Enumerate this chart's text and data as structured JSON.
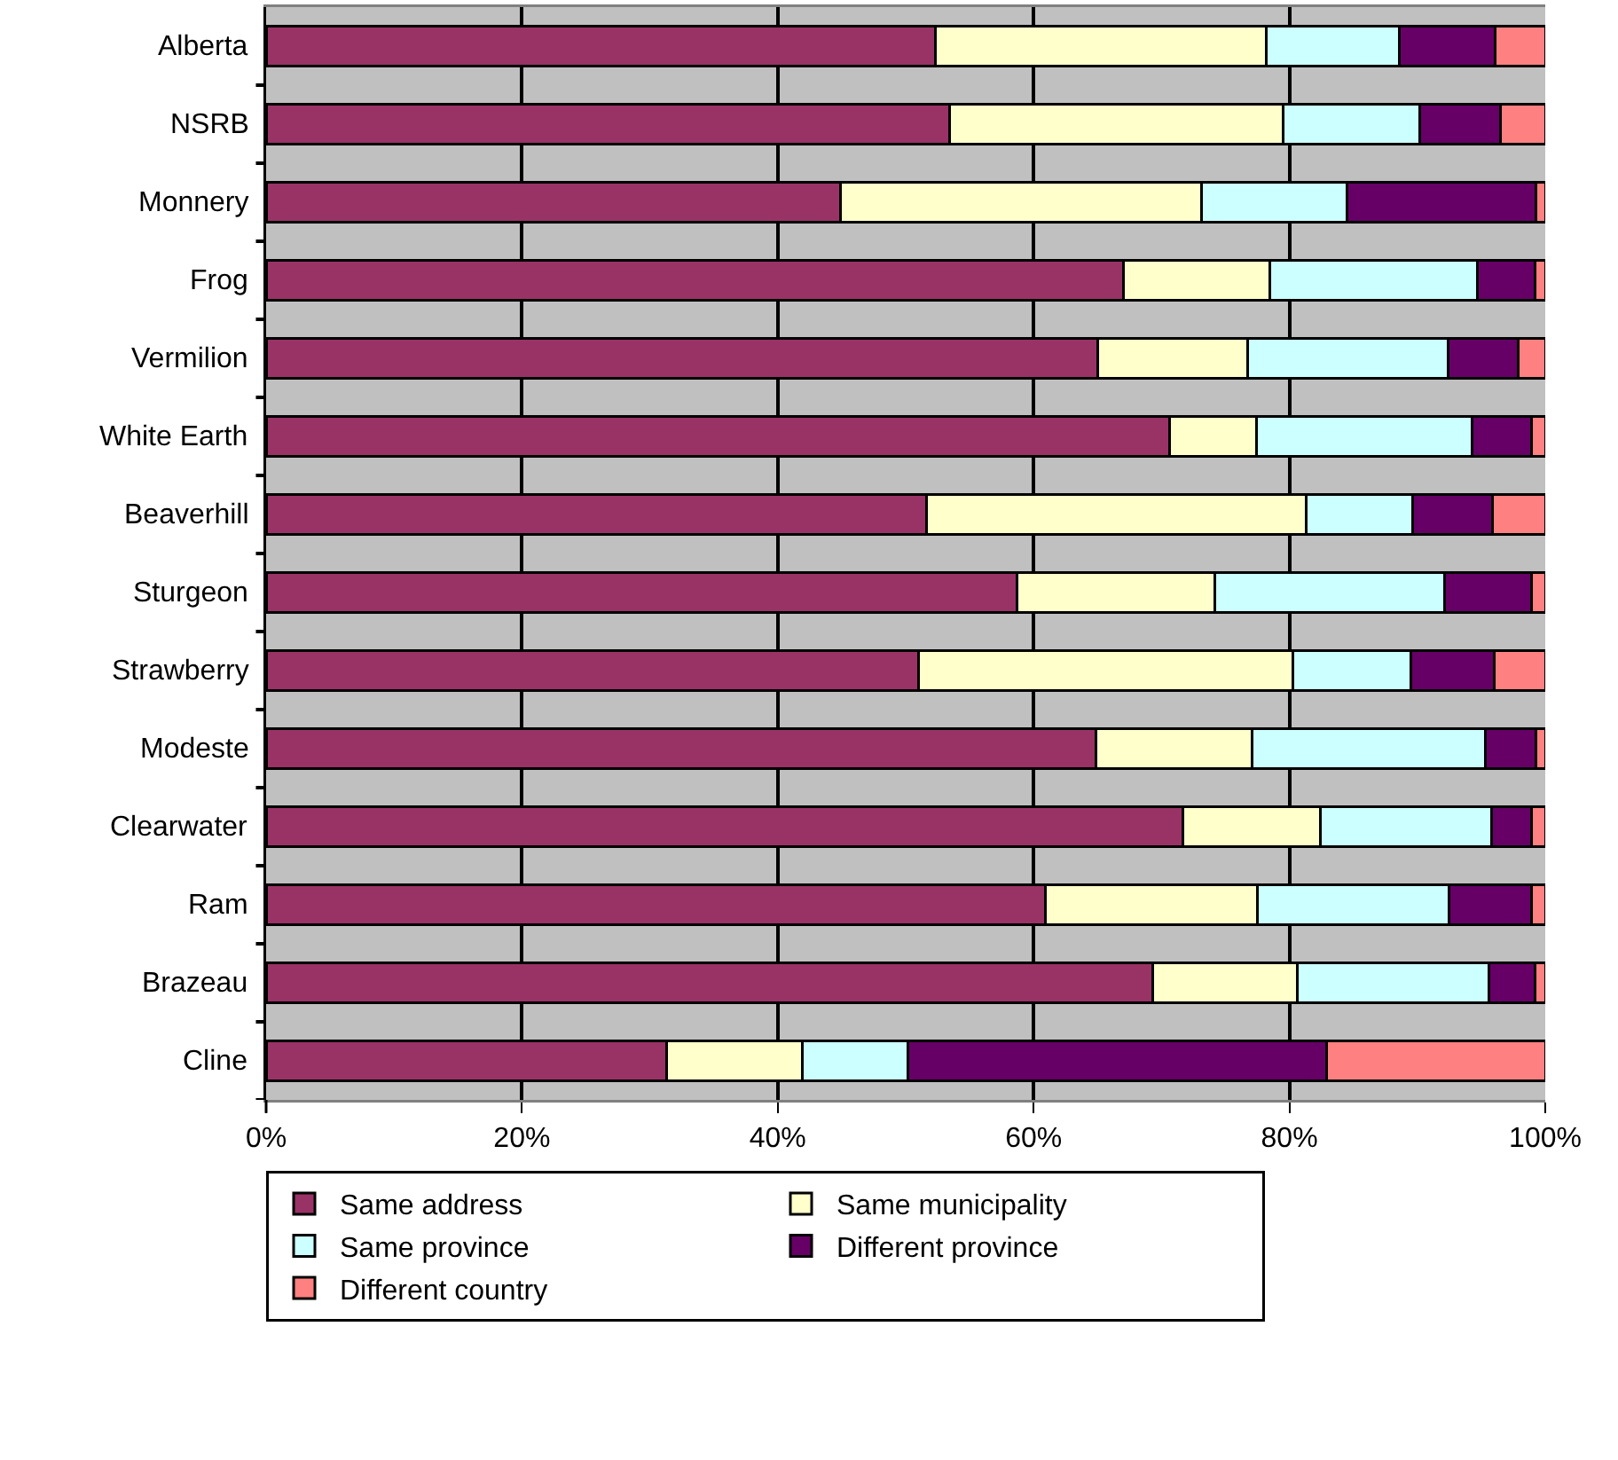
{
  "chart_data": {
    "type": "bar",
    "orientation": "horizontal",
    "stacked": true,
    "categories": [
      "Alberta",
      "NSRB",
      "Monnery",
      "Frog",
      "Vermilion",
      "White Earth",
      "Beaverhill",
      "Sturgeon",
      "Strawberry",
      "Modeste",
      "Clearwater",
      "Ram",
      "Brazeau",
      "Cline"
    ],
    "series": [
      {
        "name": "Same address",
        "color": "#993366",
        "values": [
          52.3,
          53.4,
          44.9,
          67.0,
          65.0,
          70.6,
          51.6,
          58.7,
          51.0,
          64.9,
          71.7,
          60.9,
          69.3,
          31.3
        ]
      },
      {
        "name": "Same municipality",
        "color": "#ffffcc",
        "values": [
          25.9,
          26.1,
          28.2,
          11.5,
          11.7,
          6.8,
          29.7,
          15.5,
          29.3,
          12.2,
          10.7,
          16.6,
          11.3,
          10.6
        ]
      },
      {
        "name": "Same province",
        "color": "#ccffff",
        "values": [
          10.4,
          10.7,
          11.4,
          16.2,
          15.7,
          16.9,
          8.3,
          17.9,
          9.2,
          18.2,
          13.4,
          15.0,
          15.0,
          8.3
        ]
      },
      {
        "name": "Different province",
        "color": "#660066",
        "values": [
          7.5,
          6.3,
          14.8,
          4.5,
          5.5,
          4.6,
          6.3,
          6.8,
          6.5,
          4.0,
          3.1,
          6.4,
          3.6,
          32.7
        ]
      },
      {
        "name": "Different country",
        "color": "#ff8080",
        "values": [
          3.9,
          3.5,
          0.7,
          0.8,
          2.1,
          1.1,
          4.1,
          1.1,
          4.0,
          0.7,
          1.1,
          1.1,
          0.8,
          17.1
        ]
      }
    ],
    "xlim": [
      0,
      100
    ],
    "xticks": [
      {
        "value": 0,
        "label": "0%"
      },
      {
        "value": 20,
        "label": "20%"
      },
      {
        "value": 40,
        "label": "40%"
      },
      {
        "value": 60,
        "label": "60%"
      },
      {
        "value": 80,
        "label": "80%"
      },
      {
        "value": 100,
        "label": "100%"
      }
    ],
    "grid": "x",
    "legend": "bottom"
  }
}
